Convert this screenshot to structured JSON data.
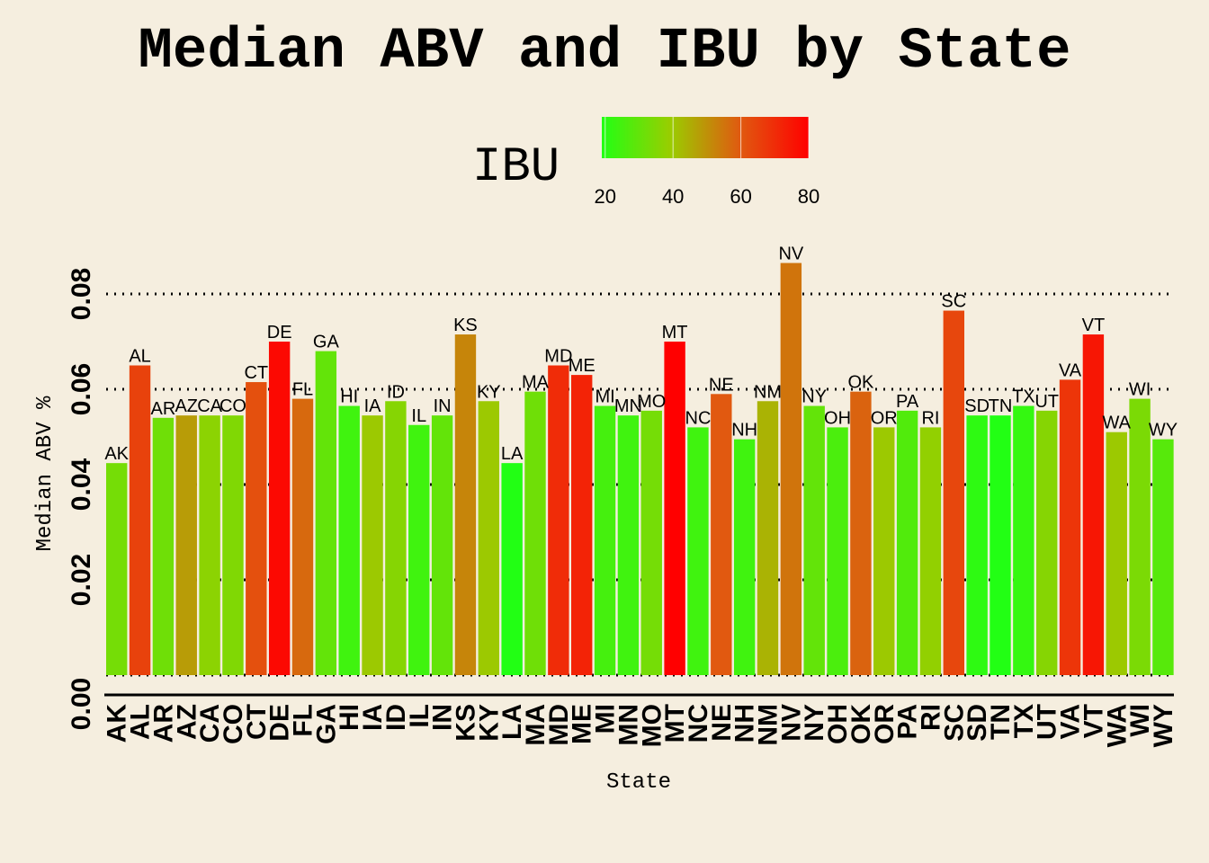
{
  "chart_data": {
    "type": "bar",
    "title": "Median ABV and IBU by State",
    "xlabel": "State",
    "ylabel": "Median ABV %",
    "ylim": [
      0,
      0.0909
    ],
    "yticks": [
      0.0,
      0.02,
      0.04,
      0.06,
      0.08
    ],
    "ytick_labels": [
      "0.00",
      "0.02",
      "0.04",
      "0.06",
      "0.08"
    ],
    "grid": "horizontal dotted",
    "legend": {
      "title": "IBU",
      "placement": "top",
      "ticks": [
        20,
        40,
        60,
        80
      ],
      "range": [
        19,
        80
      ],
      "colors": [
        "#22ff14",
        "#9acd00",
        "#e05a10",
        "#ff0000"
      ]
    },
    "categories": [
      "AK",
      "AL",
      "AR",
      "AZ",
      "CA",
      "CO",
      "CT",
      "DE",
      "FL",
      "GA",
      "HI",
      "IA",
      "ID",
      "IL",
      "IN",
      "KS",
      "KY",
      "LA",
      "MA",
      "MD",
      "ME",
      "MI",
      "MN",
      "MO",
      "MT",
      "NC",
      "NE",
      "NH",
      "NM",
      "NV",
      "NY",
      "OH",
      "OK",
      "OR",
      "PA",
      "RI",
      "SC",
      "SD",
      "TN",
      "TX",
      "UT",
      "VA",
      "VT",
      "WA",
      "WI",
      "WY"
    ],
    "series": [
      {
        "name": "Median ABV",
        "values": [
          0.0445,
          0.065,
          0.054,
          0.0545,
          0.0545,
          0.0545,
          0.0615,
          0.07,
          0.058,
          0.068,
          0.0565,
          0.0545,
          0.0575,
          0.0525,
          0.0545,
          0.0715,
          0.0575,
          0.0445,
          0.0595,
          0.065,
          0.063,
          0.0565,
          0.0545,
          0.0555,
          0.07,
          0.052,
          0.059,
          0.0495,
          0.0575,
          0.0865,
          0.0565,
          0.052,
          0.0595,
          0.052,
          0.0555,
          0.052,
          0.0765,
          0.0545,
          0.0545,
          0.0565,
          0.0555,
          0.062,
          0.0715,
          0.051,
          0.058,
          0.0495
        ]
      },
      {
        "name": "IBU",
        "values": [
          33,
          65,
          32,
          48,
          37,
          35,
          62,
          78,
          57,
          30,
          24,
          40,
          36,
          24,
          30,
          52,
          40,
          19,
          32,
          70,
          72,
          25,
          24,
          33,
          80,
          24,
          60,
          24,
          44,
          55,
          30,
          26,
          58,
          40,
          27,
          38,
          64,
          21,
          19,
          22,
          36,
          68,
          75,
          40,
          34,
          28
        ]
      }
    ]
  }
}
